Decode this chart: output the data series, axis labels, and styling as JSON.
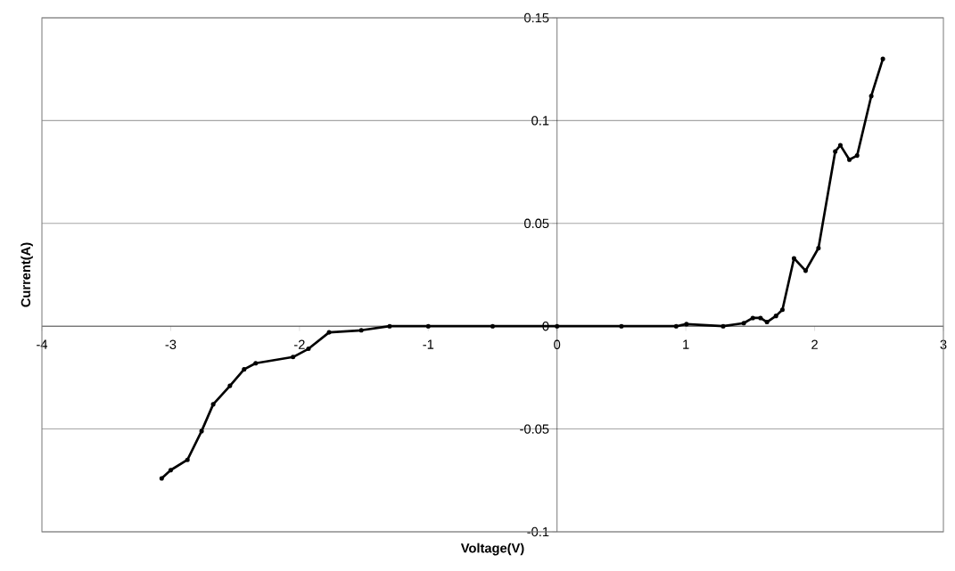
{
  "chart_data": {
    "type": "line",
    "xlabel": "Voltage(V)",
    "ylabel": "Current(A)",
    "x": [
      -3.07,
      -3.0,
      -2.87,
      -2.76,
      -2.67,
      -2.54,
      -2.43,
      -2.34,
      -2.05,
      -1.93,
      -1.77,
      -1.52,
      -1.3,
      -1.0,
      -0.5,
      0,
      0.5,
      0.925,
      1.005,
      1.29,
      1.45,
      1.52,
      1.58,
      1.63,
      1.7,
      1.75,
      1.84,
      1.93,
      2.03,
      2.16,
      2.2,
      2.27,
      2.33,
      2.44,
      2.53
    ],
    "series": [
      {
        "color": "#000000",
        "values": [
          -0.074,
          -0.07,
          -0.065,
          -0.051,
          -0.038,
          -0.029,
          -0.021,
          -0.018,
          -0.015,
          -0.011,
          -0.003,
          -0.002,
          0,
          0,
          0,
          0,
          0,
          0,
          0.001,
          0,
          0.0015,
          0.004,
          0.004,
          0.002,
          0.005,
          0.008,
          0.033,
          0.027,
          0.038,
          0.085,
          0.088,
          0.081,
          0.083,
          0.112,
          0.13
        ]
      }
    ],
    "xlim": [
      -4,
      3
    ],
    "ylim": [
      -0.1,
      0.15
    ],
    "xticks": [
      -4,
      -3,
      -2,
      -1,
      0,
      1,
      2,
      3
    ],
    "yticks": [
      -0.1,
      -0.05,
      0,
      0.05,
      0.1,
      0.15
    ],
    "grid": "y",
    "marker": "circle",
    "line_style": "solid"
  }
}
